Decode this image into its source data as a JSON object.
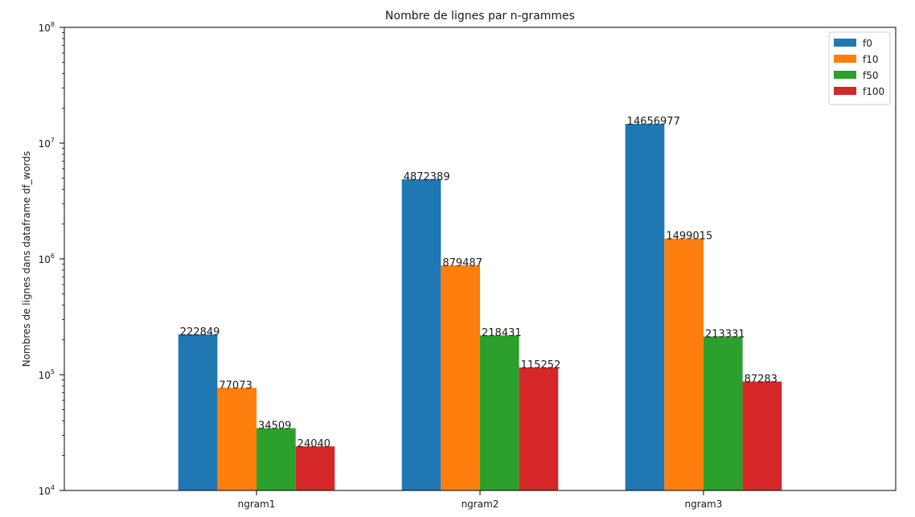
{
  "chart_data": {
    "type": "bar",
    "title": "Nombre de lignes par n-grammes",
    "xlabel": "",
    "ylabel": "Nombres de lignes dans dataframe df_words",
    "yscale": "log",
    "ylim": [
      10000,
      100000000
    ],
    "y_ticks": [
      {
        "value": 10000,
        "base": "10",
        "exp": "4"
      },
      {
        "value": 100000,
        "base": "10",
        "exp": "5"
      },
      {
        "value": 1000000,
        "base": "10",
        "exp": "6"
      },
      {
        "value": 10000000,
        "base": "10",
        "exp": "7"
      },
      {
        "value": 100000000,
        "base": "10",
        "exp": "8"
      }
    ],
    "categories": [
      "ngram1",
      "ngram2",
      "ngram3"
    ],
    "series": [
      {
        "name": "f0",
        "color": "#1f77b4",
        "values": [
          222849,
          4872389,
          14656977
        ]
      },
      {
        "name": "f10",
        "color": "#ff7f0e",
        "values": [
          77073,
          879487,
          1499015
        ]
      },
      {
        "name": "f50",
        "color": "#2ca02c",
        "values": [
          34509,
          218431,
          213331
        ]
      },
      {
        "name": "f100",
        "color": "#d62728",
        "values": [
          24040,
          115252,
          87283
        ]
      }
    ],
    "grid": false,
    "legend": "top-right"
  }
}
